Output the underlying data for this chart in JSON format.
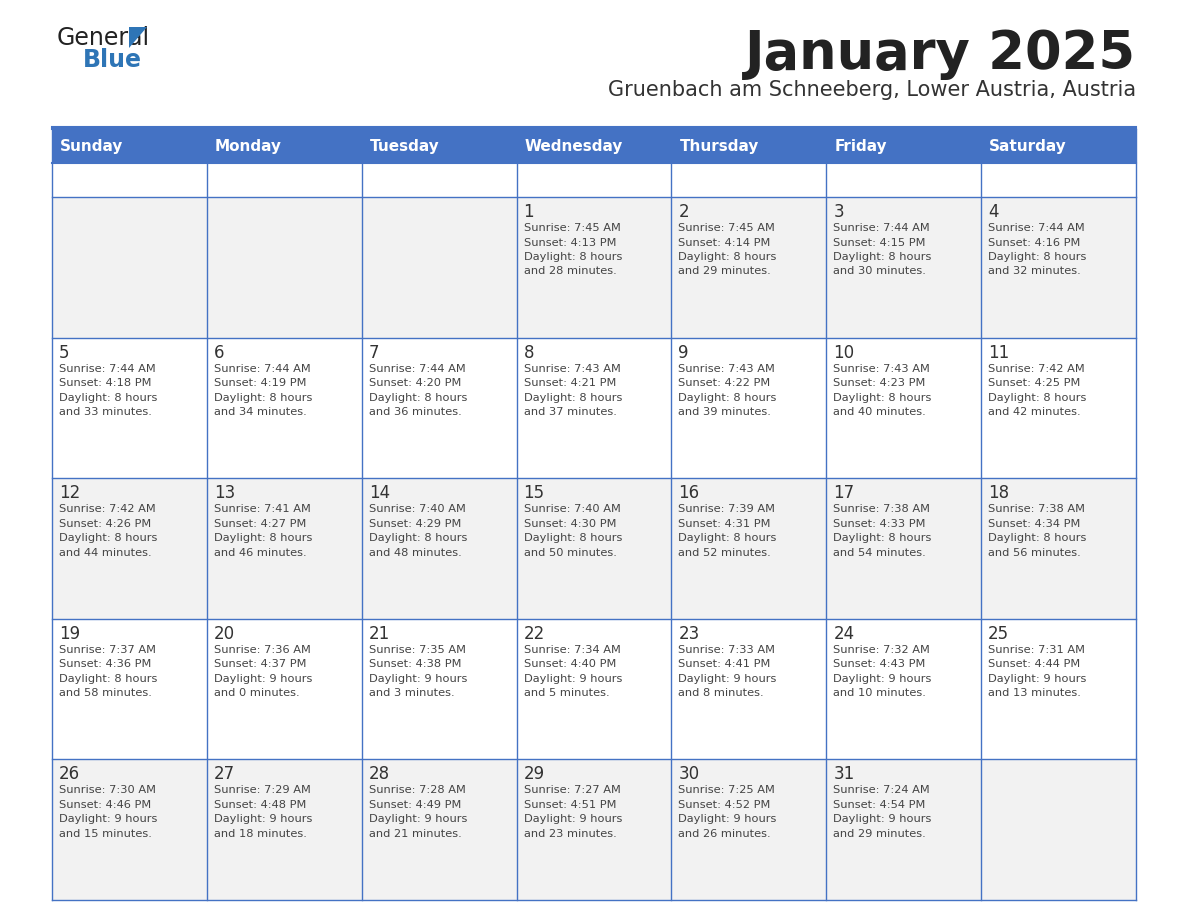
{
  "title": "January 2025",
  "subtitle": "Gruenbach am Schneeberg, Lower Austria, Austria",
  "header_bg": "#4472C4",
  "header_text": "#FFFFFF",
  "weekdays": [
    "Sunday",
    "Monday",
    "Tuesday",
    "Wednesday",
    "Thursday",
    "Friday",
    "Saturday"
  ],
  "row_bg_odd": "#F2F2F2",
  "row_bg_even": "#FFFFFF",
  "cell_border": "#4472C4",
  "day_number_color": "#333333",
  "cell_text_color": "#444444",
  "title_color": "#222222",
  "subtitle_color": "#333333",
  "logo_general_color": "#222222",
  "logo_blue_color": "#2E75B6",
  "calendar_data": [
    [
      {
        "day": null,
        "sunrise": null,
        "sunset": null,
        "daylight": null
      },
      {
        "day": null,
        "sunrise": null,
        "sunset": null,
        "daylight": null
      },
      {
        "day": null,
        "sunrise": null,
        "sunset": null,
        "daylight": null
      },
      {
        "day": 1,
        "sunrise": "7:45 AM",
        "sunset": "4:13 PM",
        "daylight": "8 hours\nand 28 minutes."
      },
      {
        "day": 2,
        "sunrise": "7:45 AM",
        "sunset": "4:14 PM",
        "daylight": "8 hours\nand 29 minutes."
      },
      {
        "day": 3,
        "sunrise": "7:44 AM",
        "sunset": "4:15 PM",
        "daylight": "8 hours\nand 30 minutes."
      },
      {
        "day": 4,
        "sunrise": "7:44 AM",
        "sunset": "4:16 PM",
        "daylight": "8 hours\nand 32 minutes."
      }
    ],
    [
      {
        "day": 5,
        "sunrise": "7:44 AM",
        "sunset": "4:18 PM",
        "daylight": "8 hours\nand 33 minutes."
      },
      {
        "day": 6,
        "sunrise": "7:44 AM",
        "sunset": "4:19 PM",
        "daylight": "8 hours\nand 34 minutes."
      },
      {
        "day": 7,
        "sunrise": "7:44 AM",
        "sunset": "4:20 PM",
        "daylight": "8 hours\nand 36 minutes."
      },
      {
        "day": 8,
        "sunrise": "7:43 AM",
        "sunset": "4:21 PM",
        "daylight": "8 hours\nand 37 minutes."
      },
      {
        "day": 9,
        "sunrise": "7:43 AM",
        "sunset": "4:22 PM",
        "daylight": "8 hours\nand 39 minutes."
      },
      {
        "day": 10,
        "sunrise": "7:43 AM",
        "sunset": "4:23 PM",
        "daylight": "8 hours\nand 40 minutes."
      },
      {
        "day": 11,
        "sunrise": "7:42 AM",
        "sunset": "4:25 PM",
        "daylight": "8 hours\nand 42 minutes."
      }
    ],
    [
      {
        "day": 12,
        "sunrise": "7:42 AM",
        "sunset": "4:26 PM",
        "daylight": "8 hours\nand 44 minutes."
      },
      {
        "day": 13,
        "sunrise": "7:41 AM",
        "sunset": "4:27 PM",
        "daylight": "8 hours\nand 46 minutes."
      },
      {
        "day": 14,
        "sunrise": "7:40 AM",
        "sunset": "4:29 PM",
        "daylight": "8 hours\nand 48 minutes."
      },
      {
        "day": 15,
        "sunrise": "7:40 AM",
        "sunset": "4:30 PM",
        "daylight": "8 hours\nand 50 minutes."
      },
      {
        "day": 16,
        "sunrise": "7:39 AM",
        "sunset": "4:31 PM",
        "daylight": "8 hours\nand 52 minutes."
      },
      {
        "day": 17,
        "sunrise": "7:38 AM",
        "sunset": "4:33 PM",
        "daylight": "8 hours\nand 54 minutes."
      },
      {
        "day": 18,
        "sunrise": "7:38 AM",
        "sunset": "4:34 PM",
        "daylight": "8 hours\nand 56 minutes."
      }
    ],
    [
      {
        "day": 19,
        "sunrise": "7:37 AM",
        "sunset": "4:36 PM",
        "daylight": "8 hours\nand 58 minutes."
      },
      {
        "day": 20,
        "sunrise": "7:36 AM",
        "sunset": "4:37 PM",
        "daylight": "9 hours\nand 0 minutes."
      },
      {
        "day": 21,
        "sunrise": "7:35 AM",
        "sunset": "4:38 PM",
        "daylight": "9 hours\nand 3 minutes."
      },
      {
        "day": 22,
        "sunrise": "7:34 AM",
        "sunset": "4:40 PM",
        "daylight": "9 hours\nand 5 minutes."
      },
      {
        "day": 23,
        "sunrise": "7:33 AM",
        "sunset": "4:41 PM",
        "daylight": "9 hours\nand 8 minutes."
      },
      {
        "day": 24,
        "sunrise": "7:32 AM",
        "sunset": "4:43 PM",
        "daylight": "9 hours\nand 10 minutes."
      },
      {
        "day": 25,
        "sunrise": "7:31 AM",
        "sunset": "4:44 PM",
        "daylight": "9 hours\nand 13 minutes."
      }
    ],
    [
      {
        "day": 26,
        "sunrise": "7:30 AM",
        "sunset": "4:46 PM",
        "daylight": "9 hours\nand 15 minutes."
      },
      {
        "day": 27,
        "sunrise": "7:29 AM",
        "sunset": "4:48 PM",
        "daylight": "9 hours\nand 18 minutes."
      },
      {
        "day": 28,
        "sunrise": "7:28 AM",
        "sunset": "4:49 PM",
        "daylight": "9 hours\nand 21 minutes."
      },
      {
        "day": 29,
        "sunrise": "7:27 AM",
        "sunset": "4:51 PM",
        "daylight": "9 hours\nand 23 minutes."
      },
      {
        "day": 30,
        "sunrise": "7:25 AM",
        "sunset": "4:52 PM",
        "daylight": "9 hours\nand 26 minutes."
      },
      {
        "day": 31,
        "sunrise": "7:24 AM",
        "sunset": "4:54 PM",
        "daylight": "9 hours\nand 29 minutes."
      },
      {
        "day": null,
        "sunrise": null,
        "sunset": null,
        "daylight": null
      }
    ]
  ]
}
